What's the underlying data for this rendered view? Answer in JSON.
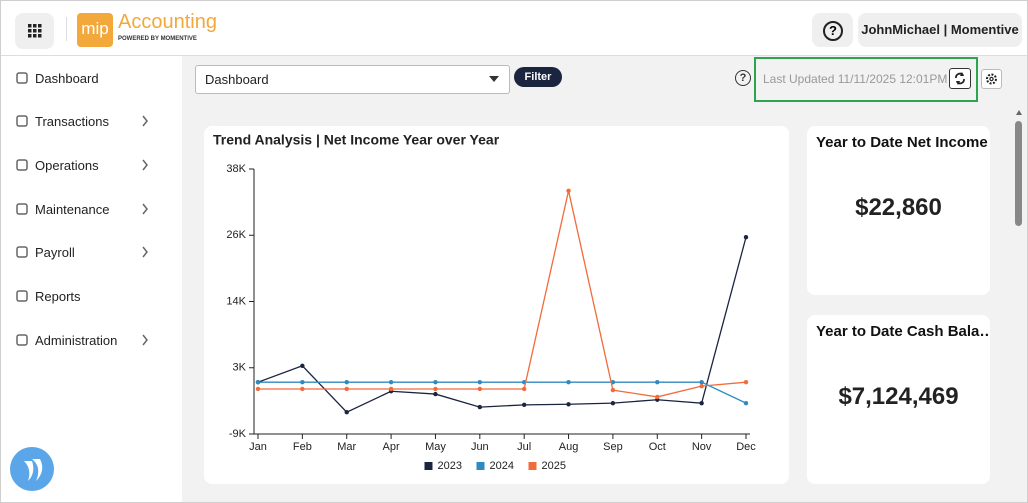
{
  "header": {
    "logo": "mip",
    "app_name": "Accounting",
    "tagline": "POWERED BY MOMENTIVE",
    "help": "?",
    "user": "JohnMichael | Momentive"
  },
  "sidebar": {
    "items": [
      "Dashboard",
      "Transactions",
      "Operations",
      "Maintenance",
      "Payroll",
      "Reports",
      "Administration"
    ]
  },
  "toolbar": {
    "dropdown": "Dashboard",
    "filter": "Filter",
    "help": "?",
    "last_updated": "Last Updated 11/11/2025 12:01PM"
  },
  "cards": [
    {
      "title": "Year to Date Net Income",
      "value": "$22,860"
    },
    {
      "title": "Year to Date Cash Bala…",
      "value": "$7,124,469"
    }
  ],
  "chart_data": {
    "type": "line",
    "title": "Trend Analysis | Net Income Year over Year",
    "categories": [
      "Jan",
      "Feb",
      "Mar",
      "Apr",
      "May",
      "Jun",
      "Jul",
      "Aug",
      "Sep",
      "Oct",
      "Nov",
      "Dec"
    ],
    "series": [
      {
        "name": "2023",
        "color": "#1b2540",
        "values": [
          0,
          2900,
          -5300,
          -1600,
          -2100,
          -4400,
          -4000,
          -3900,
          -3700,
          -3100,
          -3700,
          25600
        ]
      },
      {
        "name": "2024",
        "color": "#2e8bc0",
        "values": [
          0,
          0,
          0,
          0,
          0,
          0,
          0,
          0,
          0,
          0,
          0,
          -3700
        ]
      },
      {
        "name": "2025",
        "color": "#f26b3a",
        "values": [
          -1200,
          -1200,
          -1200,
          -1200,
          -1200,
          -1200,
          -1200,
          33800,
          -1400,
          -2600,
          -700,
          0
        ]
      }
    ],
    "ylim": [
      -9150,
      37650
    ],
    "yticks": [
      {
        "value": -9150,
        "label": "-9K"
      },
      {
        "value": 2550,
        "label": "3K"
      },
      {
        "value": 14250,
        "label": "14K"
      },
      {
        "value": 25950,
        "label": "26K"
      },
      {
        "value": 37650,
        "label": "38K"
      }
    ],
    "legend": "bottom"
  }
}
